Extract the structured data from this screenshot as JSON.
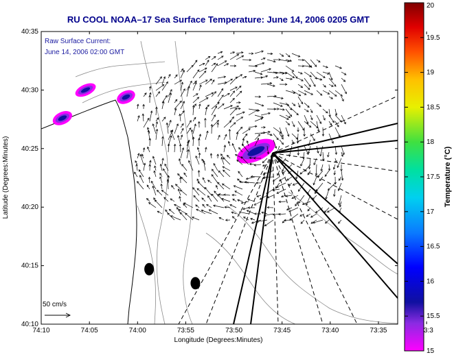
{
  "chart_data": {
    "type": "vector-field-map",
    "title": "RU COOL  NOAA–17  Sea Surface Temperature:  June 14, 2006 0205 GMT",
    "xlabel": "Longitude (Degrees:Minutes)",
    "ylabel": "Latitude (Degrees:Minutes)",
    "xlim": [
      -74.1667,
      -73.55
    ],
    "ylim": [
      40.1667,
      40.5833
    ],
    "x_ticks": [
      {
        "value": -74.1667,
        "label": "74:10"
      },
      {
        "value": -74.0833,
        "label": "74:05"
      },
      {
        "value": -74.0,
        "label": "74:00"
      },
      {
        "value": -73.9167,
        "label": "73:55"
      },
      {
        "value": -73.8333,
        "label": "73:50"
      },
      {
        "value": -73.75,
        "label": "73:45"
      },
      {
        "value": -73.6667,
        "label": "73:40"
      },
      {
        "value": -73.5833,
        "label": "73:35"
      },
      {
        "value": -73.5,
        "label": "73:3"
      }
    ],
    "y_ticks": [
      {
        "value": 40.1667,
        "label": "40:10"
      },
      {
        "value": 40.25,
        "label": "40:15"
      },
      {
        "value": 40.3333,
        "label": "40:20"
      },
      {
        "value": 40.4167,
        "label": "40:25"
      },
      {
        "value": 40.5,
        "label": "40:30"
      },
      {
        "value": 40.5833,
        "label": "40:35"
      }
    ],
    "colorbar": {
      "label": "Temperature (°C)",
      "range": [
        15,
        20
      ],
      "ticks": [
        "15",
        "15.5",
        "16",
        "16.5",
        "17",
        "17.5",
        "18",
        "18.5",
        "19",
        "19.5",
        "20"
      ]
    },
    "current_annotation": [
      "Raw Surface Current:",
      "June 14, 2006 02:00 GMT"
    ],
    "scale_label": "50 cm/s",
    "scale_speed_cms": 50,
    "current_origin": {
      "lon": -73.79,
      "lat": 40.42
    },
    "warm_patches": [
      {
        "lon": -73.795,
        "lat": 40.413,
        "temp": 15.4
      },
      {
        "lon": -74.02,
        "lat": 40.49,
        "temp": 15.3
      },
      {
        "lon": -74.09,
        "lat": 40.5,
        "temp": 15.4
      },
      {
        "lon": -74.13,
        "lat": 40.46,
        "temp": 15.3
      }
    ],
    "stations": [
      {
        "lon": -73.98,
        "lat": 40.245
      },
      {
        "lon": -73.9,
        "lat": 40.225
      }
    ],
    "grid": false
  }
}
